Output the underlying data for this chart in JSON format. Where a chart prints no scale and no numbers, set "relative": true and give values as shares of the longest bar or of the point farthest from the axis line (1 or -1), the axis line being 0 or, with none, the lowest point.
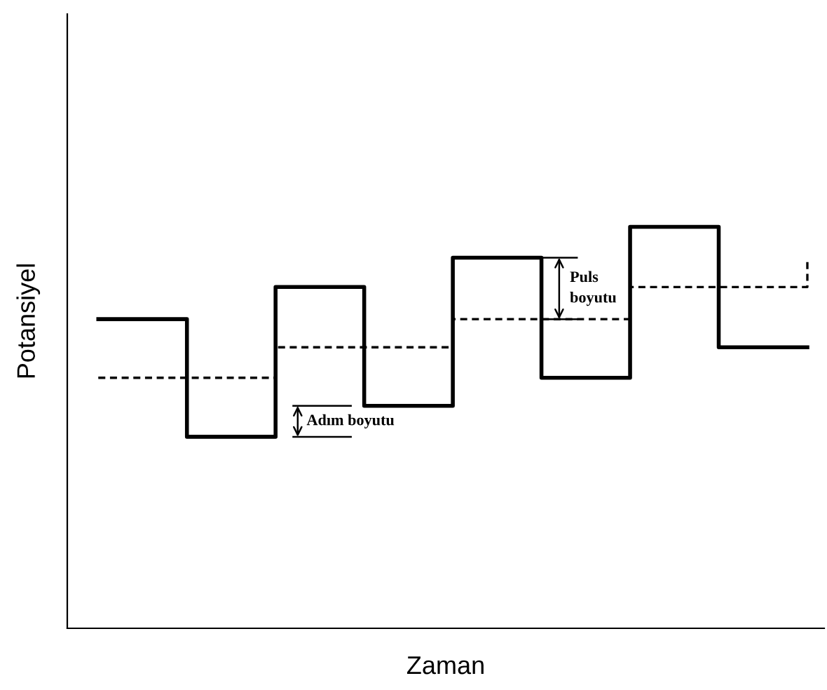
{
  "chart_data": {
    "type": "step",
    "relative": true,
    "xlabel": "Zaman",
    "ylabel": "Potansiyel",
    "categories": [
      null,
      null,
      null,
      null,
      null,
      null,
      null,
      null,
      null
    ],
    "series": [
      {
        "color": "#000000",
        "line_style": "solid",
        "values": [
          0.77,
          0.477,
          0.85,
          0.554,
          0.923,
          0.624,
          1,
          0.7,
          0.7
        ]
      },
      {
        "color": "#000000",
        "line_style": "dashed",
        "values": [
          0.624,
          0.624,
          0.7,
          0.7,
          0.77,
          0.77,
          0.85,
          0.85,
          0.913
        ]
      }
    ],
    "annotations": [
      "Puls boyutu",
      "Adım boyutu"
    ],
    "legend": false
  }
}
